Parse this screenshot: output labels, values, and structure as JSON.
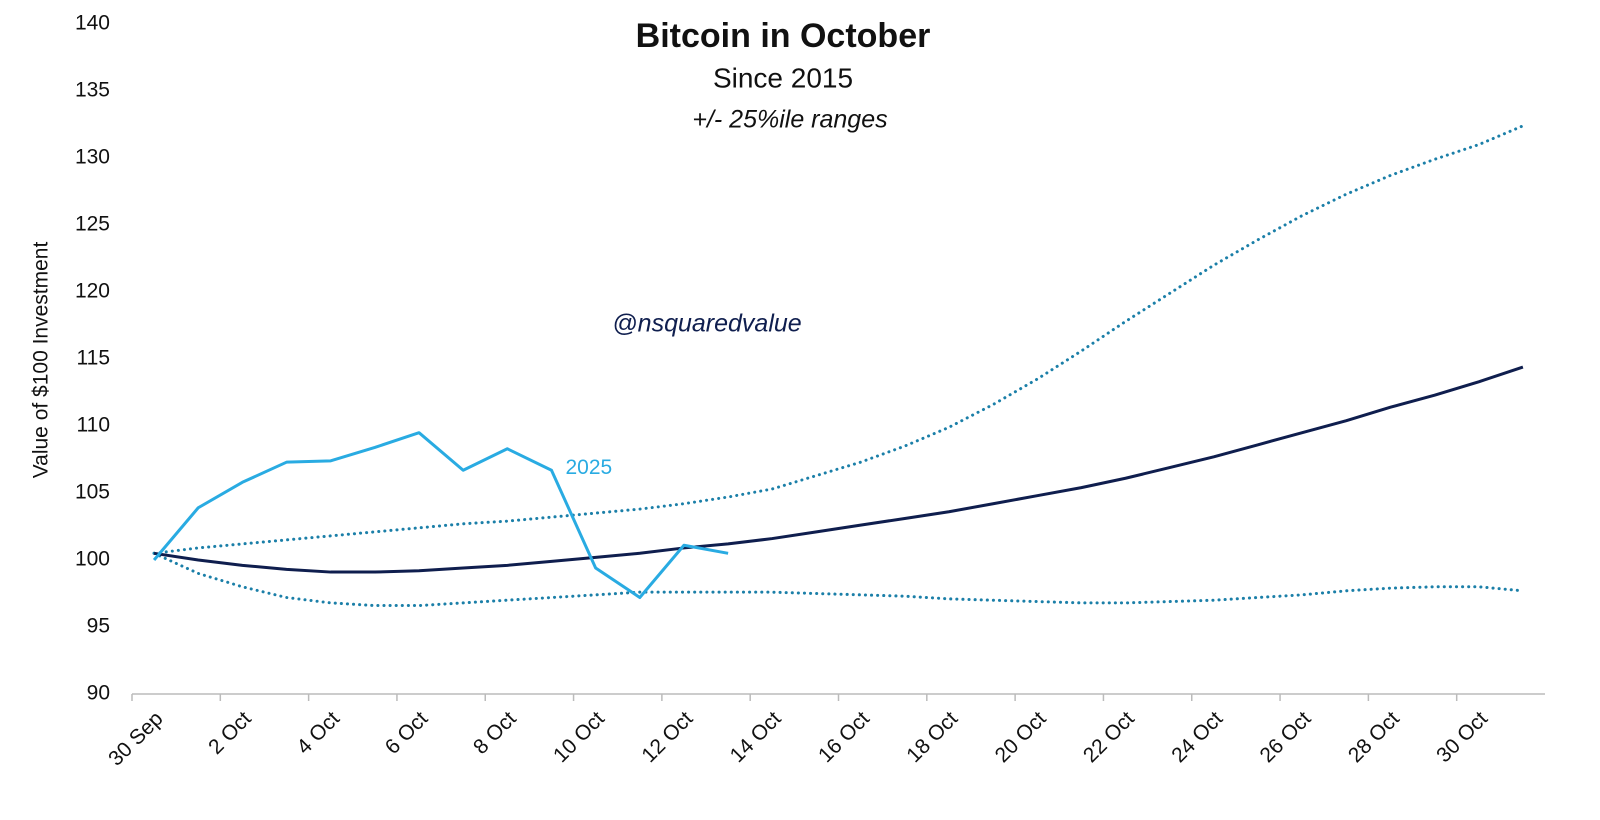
{
  "chart_data": {
    "type": "line",
    "title": "Bitcoin in October",
    "subtitle": "Since 2015",
    "note": "+/- 25%ile ranges",
    "annotation": "@nsquaredvalue",
    "ylabel": "Value of $100 Investment",
    "categories": [
      "30 Sep",
      null,
      "2 Oct",
      null,
      "4 Oct",
      null,
      "6 Oct",
      null,
      "8 Oct",
      null,
      "10 Oct",
      null,
      "12 Oct",
      null,
      "14 Oct",
      null,
      "16 Oct",
      null,
      "18 Oct",
      null,
      "20 Oct",
      null,
      "22 Oct",
      null,
      "24 Oct",
      null,
      "26 Oct",
      null,
      "28 Oct",
      null,
      "30 Oct",
      null
    ],
    "ylim": [
      90,
      140
    ],
    "yticks": [
      90,
      95,
      100,
      105,
      110,
      115,
      120,
      125,
      130,
      135,
      140
    ],
    "series": [
      {
        "color": "#1b7fa8",
        "style": "dotted",
        "values": [
          100.5,
          100.9,
          101.2,
          101.5,
          101.8,
          102.1,
          102.4,
          102.7,
          102.9,
          103.2,
          103.5,
          103.8,
          104.2,
          104.7,
          105.3,
          106.3,
          107.3,
          108.5,
          109.9,
          111.6,
          113.5,
          115.6,
          117.8,
          119.9,
          122.0,
          123.9,
          125.7,
          127.3,
          128.7,
          129.9,
          131.0,
          132.4
        ]
      },
      {
        "color": "#1b7fa8",
        "style": "dotted",
        "values": [
          100.5,
          99.0,
          98.0,
          97.2,
          96.8,
          96.6,
          96.6,
          96.8,
          97.0,
          97.2,
          97.4,
          97.6,
          97.6,
          97.6,
          97.6,
          97.5,
          97.4,
          97.3,
          97.1,
          97.0,
          96.9,
          96.8,
          96.8,
          96.9,
          97.0,
          97.2,
          97.4,
          97.7,
          97.9,
          98.0,
          98.0,
          97.7
        ]
      },
      {
        "color": "#0f1e4e",
        "style": "solid",
        "values": [
          100.5,
          100.0,
          99.6,
          99.3,
          99.1,
          99.1,
          99.2,
          99.4,
          99.6,
          99.9,
          100.2,
          100.5,
          100.9,
          101.2,
          101.6,
          102.1,
          102.6,
          103.1,
          103.6,
          104.2,
          104.8,
          105.4,
          106.1,
          106.9,
          107.7,
          108.6,
          109.5,
          110.4,
          111.4,
          112.3,
          113.3,
          114.4
        ]
      },
      {
        "name": "2025",
        "color": "#29abe2",
        "style": "solid",
        "values": [
          100.0,
          103.9,
          105.8,
          107.3,
          107.4,
          108.4,
          109.5,
          106.7,
          108.3,
          106.7,
          99.4,
          97.2,
          101.1,
          100.5,
          null,
          null,
          null,
          null,
          null,
          null,
          null,
          null,
          null,
          null,
          null,
          null,
          null,
          null,
          null,
          null,
          null,
          null
        ]
      }
    ]
  }
}
